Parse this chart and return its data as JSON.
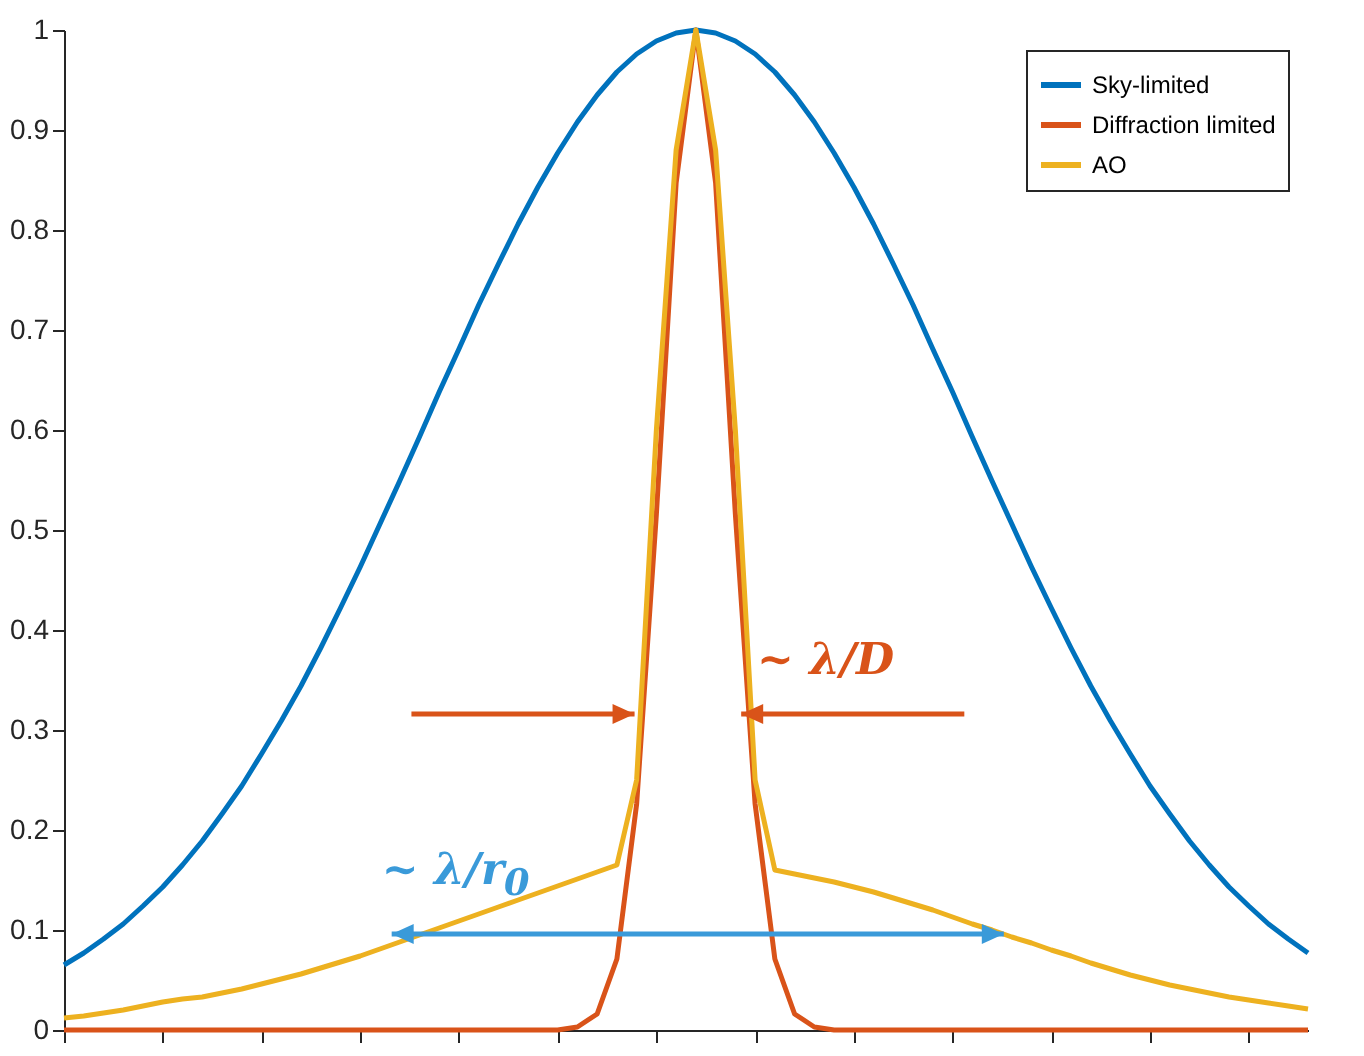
{
  "chart_data": {
    "type": "line",
    "categories": [
      null,
      null,
      null,
      null,
      null,
      null,
      null,
      null,
      null,
      null,
      null,
      null,
      null,
      null,
      null,
      null,
      null,
      null,
      null,
      null,
      null,
      null,
      null,
      null,
      null,
      null,
      null,
      null,
      null,
      null,
      null,
      null,
      null,
      null,
      null,
      null,
      null,
      null,
      null,
      null,
      null,
      null,
      null,
      null,
      null,
      null,
      null,
      null,
      null,
      null,
      null,
      null,
      null,
      null,
      null,
      null,
      null,
      null,
      null,
      null,
      null,
      null,
      null,
      null
    ],
    "series": [
      {
        "name": "Sky-limited",
        "color": "#0072bd",
        "values": [
          0.065,
          0.077,
          0.091,
          0.106,
          0.124,
          0.143,
          0.165,
          0.189,
          0.216,
          0.244,
          0.276,
          0.309,
          0.344,
          0.382,
          0.422,
          0.463,
          0.506,
          0.549,
          0.593,
          0.638,
          0.681,
          0.725,
          0.766,
          0.806,
          0.843,
          0.877,
          0.908,
          0.935,
          0.958,
          0.976,
          0.989,
          0.997,
          1,
          0.997,
          0.989,
          0.976,
          0.958,
          0.935,
          0.908,
          0.877,
          0.843,
          0.806,
          0.766,
          0.725,
          0.681,
          0.638,
          0.593,
          0.549,
          0.506,
          0.463,
          0.422,
          0.382,
          0.344,
          0.309,
          0.276,
          0.244,
          0.216,
          0.189,
          0.165,
          0.143,
          0.124,
          0.106,
          0.091,
          0.077
        ]
      },
      {
        "name": "Diffraction limited",
        "color": "#d95319",
        "values": [
          0,
          0,
          0,
          0,
          0,
          0,
          0,
          0,
          0,
          0,
          0,
          0,
          0,
          0,
          0,
          0,
          0,
          0,
          0,
          0,
          0,
          0,
          0,
          0,
          0,
          0,
          0.003,
          0.016,
          0.071,
          0.226,
          0.516,
          0.847,
          1,
          0.847,
          0.516,
          0.226,
          0.071,
          0.016,
          0.003,
          0,
          0,
          0,
          0,
          0,
          0,
          0,
          0,
          0,
          0,
          0,
          0,
          0,
          0,
          0,
          0,
          0,
          0,
          0,
          0,
          0,
          0,
          0,
          0,
          0
        ]
      },
      {
        "name": "AO",
        "color": "#edb120",
        "values": [
          0.012,
          0.014,
          0.017,
          0.02,
          0.024,
          0.028,
          0.031,
          0.033,
          0.037,
          0.041,
          0.046,
          0.051,
          0.056,
          0.062,
          0.068,
          0.074,
          0.081,
          0.088,
          0.095,
          0.102,
          0.109,
          0.116,
          0.123,
          0.13,
          0.137,
          0.144,
          0.151,
          0.158,
          0.165,
          0.25,
          0.6,
          0.88,
          1,
          0.88,
          0.6,
          0.25,
          0.16,
          0.156,
          0.152,
          0.148,
          0.143,
          0.138,
          0.132,
          0.126,
          0.12,
          0.113,
          0.106,
          0.1,
          0.093,
          0.087,
          0.08,
          0.074,
          0.067,
          0.061,
          0.055,
          0.05,
          0.045,
          0.041,
          0.037,
          0.033,
          0.03,
          0.027,
          0.024,
          0.021
        ]
      }
    ],
    "ylim": [
      0,
      1
    ],
    "yticks": [
      0,
      0.1,
      0.2,
      0.3,
      0.4,
      0.5,
      0.6,
      0.7,
      0.8,
      0.9,
      1
    ],
    "tick_labels": "y",
    "legend": "top right",
    "marker": "none",
    "line_style": "solid",
    "annotations": [
      "~ λ/D",
      "~ λ/r$_{0}$"
    ]
  }
}
